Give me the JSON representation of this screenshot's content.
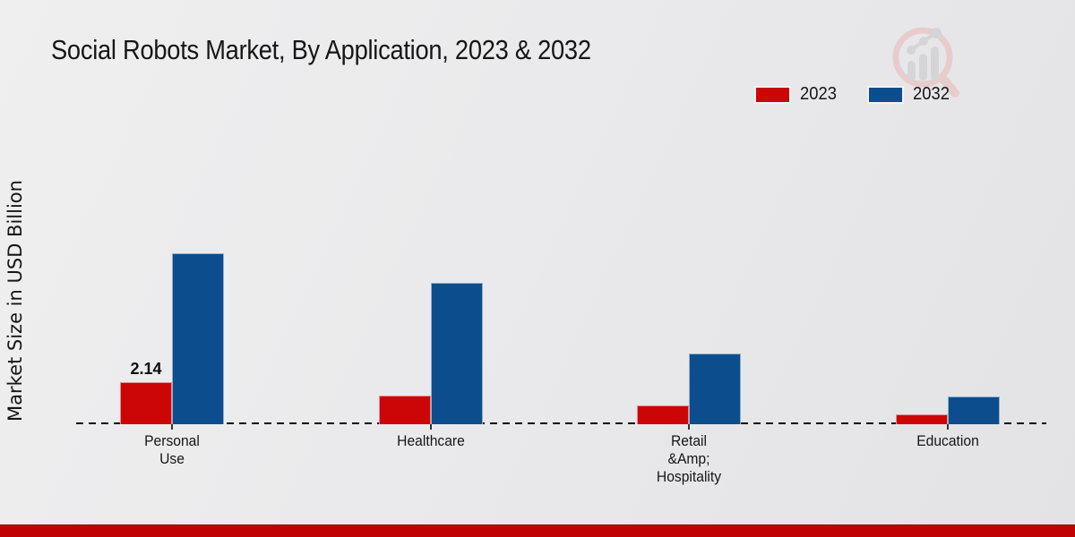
{
  "header": {
    "title": "Social Robots Market, By Application, 2023 & 2032"
  },
  "branding": {
    "logo_icon": "magnifier-bar-chart-logo",
    "logo_ring_color": "#e9caca",
    "logo_bar_color": "#d4d4d6"
  },
  "colors": {
    "series_2023": "#cc0606",
    "series_2032": "#0c4e8d",
    "footer_stripe": "#c00202",
    "baseline": "#0b0b0b",
    "background": "#eaeaec"
  },
  "chart_data": {
    "type": "bar",
    "title": "Social Robots Market, By Application, 2023 & 2032",
    "xlabel": "",
    "ylabel": "Market Size in USD Billion",
    "categories": [
      "Personal\nUse",
      "Healthcare",
      "Retail\n&Amp;\nHospitality",
      "Education"
    ],
    "series": [
      {
        "name": "2023",
        "color": "#cc0606",
        "values": [
          2.14,
          1.45,
          0.95,
          0.5
        ]
      },
      {
        "name": "2032",
        "color": "#0c4e8d",
        "values": [
          8.7,
          7.2,
          3.6,
          1.4
        ]
      }
    ],
    "value_labels": [
      {
        "series": "2023",
        "category_index": 0,
        "text": "2.14"
      }
    ],
    "ylim": [
      0,
      10
    ],
    "y_axis_ticks_visible": false,
    "grid": false,
    "baseline_style": "dashed",
    "legend_position": "top-right"
  },
  "footer": {}
}
